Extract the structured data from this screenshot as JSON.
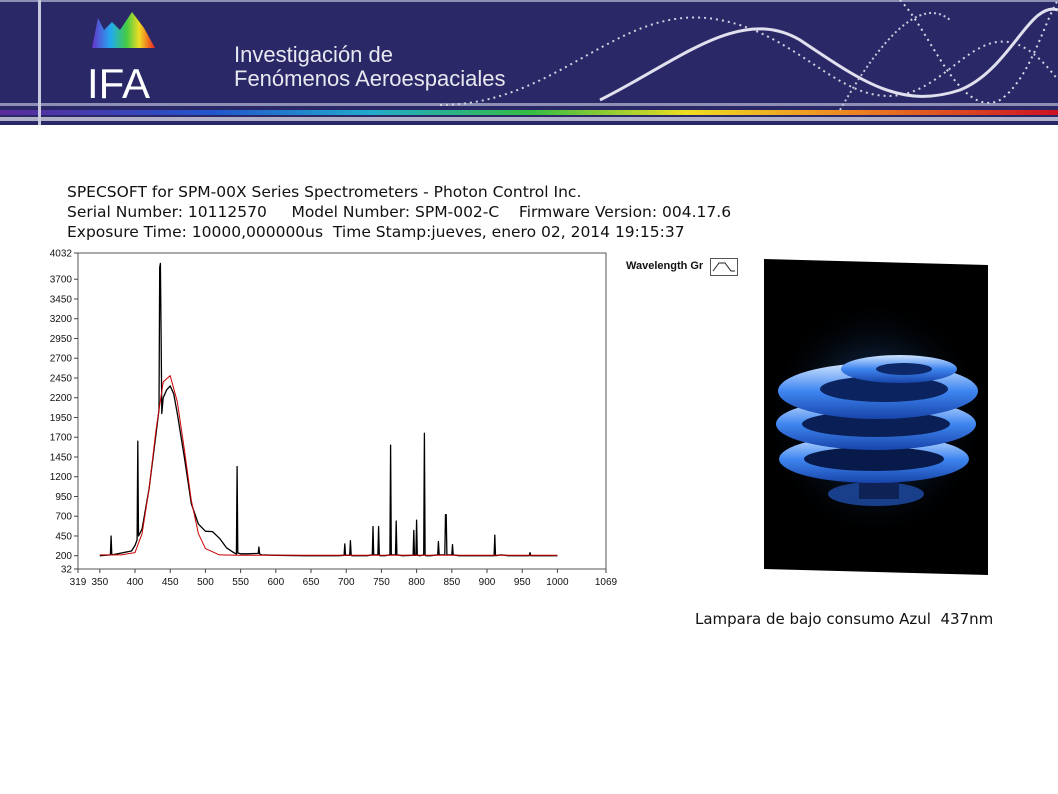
{
  "banner": {
    "logo_text": "IFA",
    "title_line1": "Investigación de",
    "title_line2": "Fenómenos Aeroespaciales"
  },
  "header": {
    "line1": "SPECSOFT for SPM-00X Series Spectrometers - Photon Control Inc.",
    "line2": "Serial Number: 10112570     Model Number: SPM-002-C    Firmware Version: 004.17.6",
    "line3": "Exposure Time: 10000,000000us  Time Stamp:jueves, enero 02, 2014 19:15:37"
  },
  "legend": {
    "label": "Wavelength Gr"
  },
  "caption": "Lampara de bajo consumo Azul  437nm",
  "chart_data": {
    "type": "line",
    "xlim": [
      319,
      1069
    ],
    "ylim": [
      32,
      4032
    ],
    "xticks": [
      "319",
      "350",
      "400",
      "450",
      "500",
      "550",
      "600",
      "650",
      "700",
      "750",
      "800",
      "850",
      "900",
      "950",
      "1000",
      "1069"
    ],
    "yticks": [
      "4032",
      "3700",
      "3450",
      "3200",
      "2950",
      "2700",
      "2450",
      "2200",
      "1950",
      "1700",
      "1450",
      "1200",
      "950",
      "700",
      "450",
      "200",
      "32"
    ],
    "grid": false,
    "series": [
      {
        "color": "#000000",
        "x": [
          350,
          365,
          366,
          367,
          370,
          395,
          400,
          403,
          404,
          405,
          410,
          420,
          430,
          434,
          435,
          436,
          437,
          438,
          440,
          445,
          450,
          455,
          460,
          470,
          480,
          490,
          500,
          510,
          520,
          530,
          540,
          544,
          545,
          546,
          550,
          560,
          575,
          576,
          577,
          580,
          600,
          640,
          690,
          697,
          698,
          699,
          705,
          706,
          707,
          708,
          715,
          730,
          737,
          738,
          739,
          745,
          746,
          747,
          748,
          755,
          762,
          763,
          764,
          770,
          771,
          772,
          780,
          795,
          796,
          797,
          799,
          800,
          801,
          805,
          810,
          811,
          812,
          813,
          820,
          830,
          831,
          832,
          840,
          841,
          842,
          843,
          850,
          851,
          852,
          860,
          880,
          910,
          911,
          912,
          920,
          930,
          960,
          961,
          962,
          1000
        ],
        "y": [
          200,
          210,
          450,
          210,
          215,
          260,
          330,
          400,
          1650,
          450,
          540,
          1050,
          1750,
          2050,
          3850,
          3900,
          3000,
          2000,
          2200,
          2300,
          2350,
          2250,
          2000,
          1450,
          860,
          600,
          510,
          505,
          420,
          300,
          240,
          220,
          1330,
          235,
          225,
          225,
          230,
          310,
          225,
          210,
          205,
          200,
          200,
          205,
          350,
          205,
          205,
          390,
          205,
          200,
          200,
          200,
          210,
          570,
          210,
          210,
          570,
          210,
          200,
          200,
          210,
          1600,
          210,
          210,
          640,
          210,
          200,
          205,
          520,
          205,
          205,
          650,
          205,
          200,
          210,
          1750,
          210,
          200,
          200,
          210,
          380,
          210,
          210,
          720,
          720,
          210,
          210,
          340,
          210,
          200,
          200,
          200,
          460,
          200,
          210,
          200,
          200,
          240,
          200,
          200
        ]
      },
      {
        "color": "#cc0000",
        "x": [
          350,
          380,
          400,
          410,
          420,
          430,
          440,
          450,
          460,
          470,
          480,
          490,
          500,
          520,
          550,
          600,
          700,
          800,
          900,
          1000
        ],
        "y": [
          210,
          210,
          240,
          480,
          1050,
          1800,
          2400,
          2480,
          2150,
          1550,
          900,
          480,
          290,
          210,
          205,
          205,
          205,
          205,
          205,
          205
        ]
      }
    ]
  }
}
